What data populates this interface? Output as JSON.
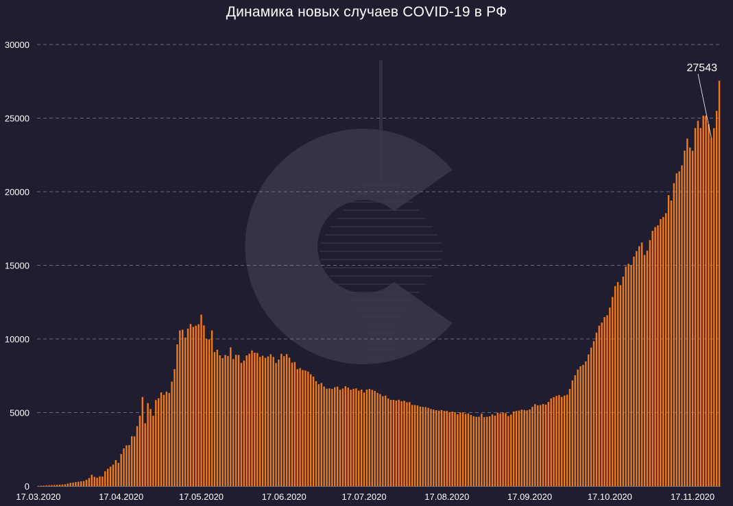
{
  "title": "Динамика новых случаев COVID-19 в РФ",
  "colors": {
    "background": "#1f1d2f",
    "bar": "#f07a1c",
    "grid": "#8c8a9c",
    "text": "#ffffff",
    "watermark": "#3a384b"
  },
  "chart_data": {
    "type": "bar",
    "title": "Динамика новых случаев COVID-19 в РФ",
    "xlabel": "",
    "ylabel": "",
    "grid": "horizontal dashed",
    "legend": "none",
    "ylim": [
      0,
      30000
    ],
    "y_ticks": [
      "0",
      "5000",
      "10000",
      "15000",
      "20000",
      "25000",
      "30000"
    ],
    "x_tick_labels": [
      "17.03.2020",
      "17.04.2020",
      "17.05.2020",
      "17.06.2020",
      "17.07.2020",
      "17.08.2020",
      "17.09.2020",
      "17.10.2020",
      "17.11.2020"
    ],
    "x_start": "17.03.2020",
    "annotation": {
      "text": "27543",
      "date": "24.11.2020"
    },
    "series": [
      {
        "values": [
          21,
          30,
          40,
          50,
          60,
          70,
          80,
          90,
          100,
          110,
          130,
          170,
          220,
          240,
          280,
          300,
          330,
          350,
          430,
          550,
          770,
          630,
          570,
          660,
          650,
          1010,
          1180,
          1320,
          1460,
          1770,
          1580,
          2180,
          2570,
          2770,
          2790,
          3390,
          3380,
          4070,
          4780,
          6060,
          4270,
          5640,
          5240,
          4780,
          5850,
          5970,
          6370,
          6200,
          6420,
          6330,
          7100,
          7950,
          9630,
          10580,
          10630,
          10100,
          10700,
          11010,
          10820,
          10900,
          11000,
          11650,
          10920,
          10000,
          9970,
          10580,
          9110,
          9270,
          8890,
          8700,
          8910,
          8840,
          9430,
          8630,
          8920,
          8910,
          8370,
          8530,
          8880,
          9000,
          9220,
          9070,
          9050,
          8780,
          8860,
          8720,
          8810,
          8960,
          8780,
          8360,
          8600,
          8990,
          8830,
          8970,
          8730,
          8390,
          8430,
          7950,
          8020,
          7890,
          7860,
          7780,
          7600,
          7440,
          7130,
          6930,
          7010,
          6770,
          6620,
          6640,
          6600,
          6720,
          6760,
          6550,
          6630,
          6790,
          6690,
          6550,
          6610,
          6640,
          6490,
          6560,
          6360,
          6560,
          6610,
          6540,
          6470,
          6340,
          6250,
          6110,
          6150,
          5960,
          5860,
          5860,
          5810,
          5870,
          5770,
          5800,
          5700,
          5710,
          5520,
          5510,
          5480,
          5400,
          5380,
          5370,
          5320,
          5240,
          5200,
          5160,
          5130,
          5170,
          5110,
          5110,
          5030,
          5060,
          5030,
          4890,
          5010,
          5010,
          4910,
          4940,
          4840,
          4750,
          4710,
          4720,
          4920,
          4690,
          4710,
          4740,
          4870,
          4790,
          4990,
          4940,
          5000,
          4960,
          4760,
          4860,
          5070,
          5110,
          5140,
          5200,
          5170,
          5150,
          5210,
          5390,
          5570,
          5490,
          5510,
          5580,
          5540,
          5720,
          5960,
          6050,
          6130,
          6190,
          6060,
          6150,
          6210,
          6600,
          7180,
          7530,
          7920,
          8140,
          8240,
          8480,
          8950,
          9410,
          9850,
          10430,
          10900,
          11110,
          11490,
          11610,
          12130,
          12850,
          13590,
          13870,
          13650,
          14230,
          14920,
          15100,
          15020,
          15590,
          15970,
          16300,
          16550,
          15700,
          16000,
          16710,
          17340,
          17600,
          17720,
          18140,
          18280,
          18540,
          19770,
          19400,
          20580,
          21250,
          21380,
          21790,
          22790,
          23610,
          23000,
          22780,
          24320,
          24820,
          24330,
          25170,
          25170,
          24580,
          23660,
          24318,
          25487,
          27543
        ]
      }
    ]
  }
}
